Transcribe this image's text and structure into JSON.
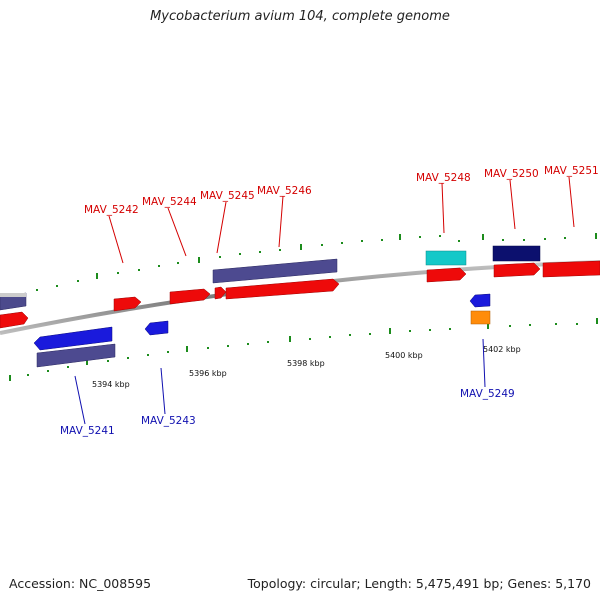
{
  "title": "Mycobacterium avium 104, complete genome",
  "footer": {
    "accession": "Accession: NC_008595",
    "summary": "Topology: circular; Length: 5,475,491 bp; Genes: 5,170"
  },
  "colors": {
    "forward_label": "#d40000",
    "reverse_label": "#1010b0",
    "backbone": "#8a8a8a",
    "tick": "#1c8c1c"
  },
  "scale_labels": [
    "5394 kbp",
    "5396 kbp",
    "5398 kbp",
    "5400 kbp",
    "5402 kbp"
  ],
  "genes": [
    {
      "id": "MAV_5241",
      "strand": "reverse",
      "label_color": "blue"
    },
    {
      "id": "MAV_5242",
      "strand": "forward",
      "label_color": "red"
    },
    {
      "id": "MAV_5243",
      "strand": "reverse",
      "label_color": "blue"
    },
    {
      "id": "MAV_5244",
      "strand": "forward",
      "label_color": "red"
    },
    {
      "id": "MAV_5245",
      "strand": "forward",
      "label_color": "red"
    },
    {
      "id": "MAV_5246",
      "strand": "forward",
      "label_color": "red"
    },
    {
      "id": "MAV_5248",
      "strand": "forward",
      "label_color": "red"
    },
    {
      "id": "MAV_5249",
      "strand": "reverse",
      "label_color": "blue"
    },
    {
      "id": "MAV_5250",
      "strand": "forward",
      "label_color": "red"
    },
    {
      "id": "MAV_5251",
      "strand": "forward",
      "label_color": "red"
    }
  ]
}
